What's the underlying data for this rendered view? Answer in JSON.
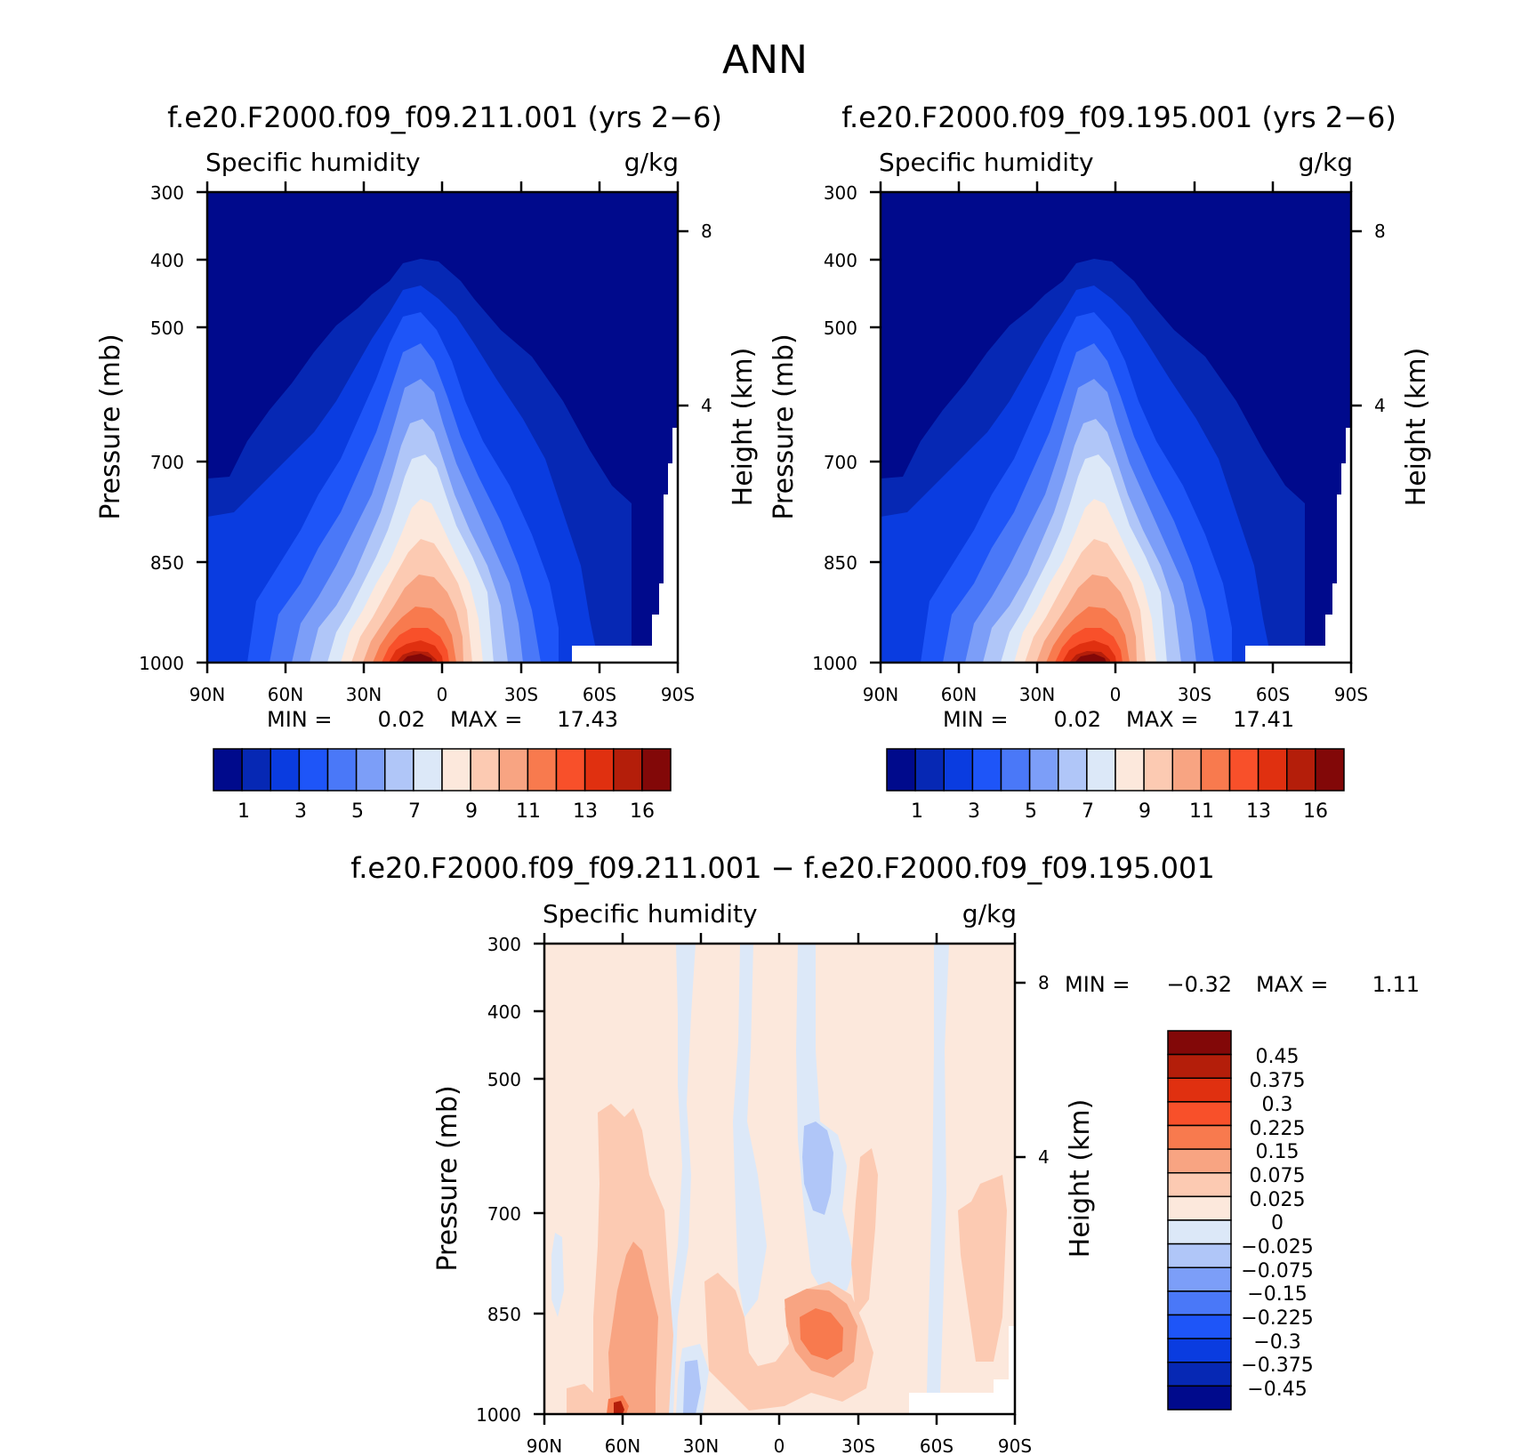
{
  "page": {
    "title": "ANN"
  },
  "colors": {
    "abs_fills": [
      "#000a8c",
      "#0628b4",
      "#0a3ce0",
      "#1e55f8",
      "#4a78f8",
      "#7c9ef8",
      "#b0c6f8",
      "#dce8f8",
      "#fce8dc",
      "#fccab2",
      "#f8a482",
      "#f87a4e",
      "#f8502a",
      "#e03010",
      "#b41e0a",
      "#820808"
    ],
    "diff_fills": [
      "#000a8c",
      "#0628b4",
      "#0a3ce0",
      "#1e55f8",
      "#4a78f8",
      "#7c9ef8",
      "#b0c6f8",
      "#dce8f8",
      "#fce8dc",
      "#fccab2",
      "#f8a482",
      "#f87a4e",
      "#f8502a",
      "#e03010",
      "#b41e0a",
      "#820808"
    ]
  },
  "chart_data": [
    {
      "type": "heatmap",
      "title": "f.e20.F2000.f09_f09.211.001 (yrs 2-6)",
      "left_label": "Specific humidity",
      "units": "g/kg",
      "ylabel": "Pressure (mb)",
      "y2label": "Height (km)",
      "y_ticks": [
        "300",
        "400",
        "500",
        "700",
        "850",
        "1000"
      ],
      "y2_ticks": [
        "8",
        "4"
      ],
      "x_ticks": [
        "90N",
        "60N",
        "30N",
        "0",
        "30S",
        "60S",
        "90S"
      ],
      "min_label": "MIN =",
      "min_value": "0.02",
      "max_label": "MAX =",
      "max_value": "17.43",
      "colorbar_labels": [
        "1",
        "3",
        "5",
        "7",
        "9",
        "11",
        "13",
        "16"
      ]
    },
    {
      "type": "heatmap",
      "title": "f.e20.F2000.f09_f09.195.001 (yrs 2-6)",
      "left_label": "Specific humidity",
      "units": "g/kg",
      "ylabel": "Pressure (mb)",
      "y2label": "Height (km)",
      "y_ticks": [
        "300",
        "400",
        "500",
        "700",
        "850",
        "1000"
      ],
      "y2_ticks": [
        "8",
        "4"
      ],
      "x_ticks": [
        "90N",
        "60N",
        "30N",
        "0",
        "30S",
        "60S",
        "90S"
      ],
      "min_label": "MIN =",
      "min_value": "0.02",
      "max_label": "MAX =",
      "max_value": "17.41",
      "colorbar_labels": [
        "1",
        "3",
        "5",
        "7",
        "9",
        "11",
        "13",
        "16"
      ]
    },
    {
      "type": "heatmap",
      "title": "f.e20.F2000.f09_f09.211.001 - f.e20.F2000.f09_f09.195.001",
      "left_label": "Specific humidity",
      "units": "g/kg",
      "ylabel": "Pressure (mb)",
      "y2label": "Height (km)",
      "y_ticks": [
        "300",
        "400",
        "500",
        "700",
        "850",
        "1000"
      ],
      "y2_ticks": [
        "8",
        "4"
      ],
      "x_ticks": [
        "90N",
        "60N",
        "30N",
        "0",
        "30S",
        "60S",
        "90S"
      ],
      "min_label": "MIN =",
      "min_value": "-0.32",
      "max_label": "MAX =",
      "max_value": "1.11",
      "colorbar_labels": [
        "0.45",
        "0.375",
        "0.3",
        "0.225",
        "0.15",
        "0.075",
        "0.025",
        "0",
        "-0.025",
        "-0.075",
        "-0.15",
        "-0.225",
        "-0.3",
        "-0.375",
        "-0.45"
      ]
    }
  ]
}
